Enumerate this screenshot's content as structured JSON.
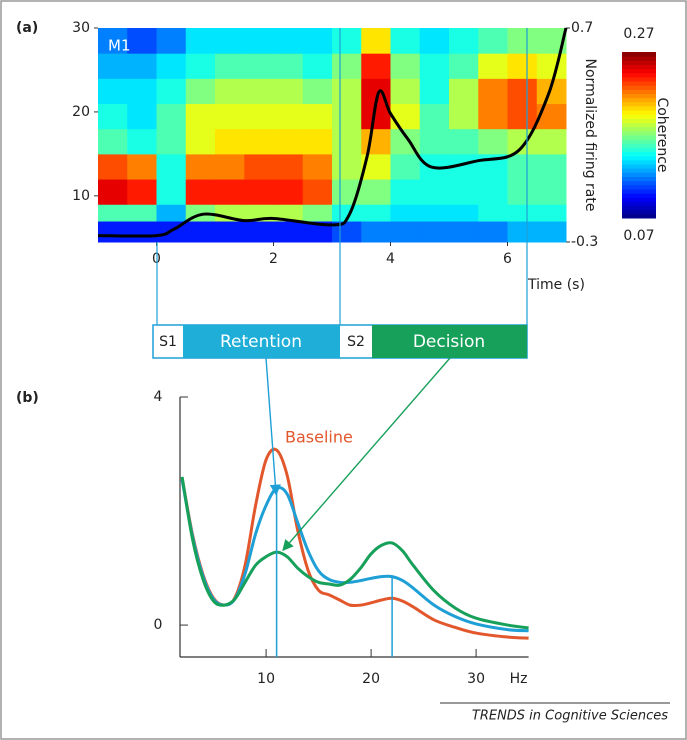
{
  "panels": {
    "a": "(a)",
    "b": "(b)"
  },
  "timeline": {
    "segments": [
      "S1",
      "Retention",
      "S2",
      "Decision"
    ]
  },
  "credit": "TRENDS in Cognitive Sciences",
  "chart_data": [
    {
      "type": "heatmap",
      "label": "M1",
      "x_bins": [
        -1,
        -0.5,
        0,
        0.5,
        1,
        1.5,
        2,
        2.5,
        3,
        3.5,
        4,
        4.5,
        5,
        5.5,
        6,
        6.5,
        7
      ],
      "y_bins": [
        4.5,
        7,
        9,
        12,
        15,
        18,
        21,
        24,
        27,
        30
      ],
      "values": [
        [
          0.1,
          0.1,
          0.1,
          0.1,
          0.1,
          0.1,
          0.1,
          0.1,
          0.11,
          0.12,
          0.12,
          0.12,
          0.12,
          0.12,
          0.13,
          0.13
        ],
        [
          0.16,
          0.16,
          0.13,
          0.17,
          0.18,
          0.18,
          0.18,
          0.17,
          0.15,
          0.15,
          0.14,
          0.14,
          0.14,
          0.15,
          0.15,
          0.15
        ],
        [
          0.25,
          0.24,
          0.15,
          0.24,
          0.24,
          0.24,
          0.24,
          0.23,
          0.17,
          0.17,
          0.15,
          0.15,
          0.15,
          0.15,
          0.16,
          0.16
        ],
        [
          0.23,
          0.22,
          0.15,
          0.22,
          0.22,
          0.23,
          0.23,
          0.22,
          0.18,
          0.19,
          0.16,
          0.15,
          0.15,
          0.15,
          0.16,
          0.16
        ],
        [
          0.16,
          0.15,
          0.16,
          0.19,
          0.2,
          0.2,
          0.2,
          0.2,
          0.18,
          0.21,
          0.17,
          0.16,
          0.16,
          0.17,
          0.18,
          0.18
        ],
        [
          0.15,
          0.14,
          0.16,
          0.19,
          0.19,
          0.19,
          0.19,
          0.19,
          0.18,
          0.25,
          0.19,
          0.16,
          0.18,
          0.22,
          0.23,
          0.22
        ],
        [
          0.14,
          0.14,
          0.15,
          0.17,
          0.18,
          0.18,
          0.18,
          0.17,
          0.18,
          0.25,
          0.18,
          0.15,
          0.18,
          0.22,
          0.23,
          0.21
        ],
        [
          0.13,
          0.13,
          0.14,
          0.15,
          0.16,
          0.16,
          0.16,
          0.15,
          0.17,
          0.24,
          0.17,
          0.15,
          0.16,
          0.19,
          0.2,
          0.19
        ],
        [
          0.12,
          0.11,
          0.12,
          0.14,
          0.14,
          0.14,
          0.14,
          0.14,
          0.15,
          0.2,
          0.15,
          0.14,
          0.15,
          0.16,
          0.17,
          0.17
        ]
      ],
      "xlim": [
        -1,
        7
      ],
      "ylim": [
        4.5,
        30
      ],
      "xticks": [
        0,
        2,
        4,
        6
      ],
      "yticks": [
        10,
        20,
        30
      ],
      "xlabel": "Time (s)",
      "colorbar": {
        "label": "Coherence",
        "clim": [
          0.07,
          0.27
        ],
        "ticks": [
          0.07,
          0.27
        ]
      },
      "y2label": "Normalized firing rate",
      "y2lim": [
        -0.3,
        0.7
      ],
      "y2ticks": [
        -0.3,
        0.7
      ],
      "series": [
        {
          "axis": "y2",
          "color": "#000000",
          "x": [
            -1,
            0,
            0.3,
            0.8,
            1.5,
            2,
            3,
            3.3,
            3.6,
            3.8,
            4.0,
            4.3,
            4.7,
            5.5,
            6.2,
            6.7,
            7
          ],
          "values": [
            -0.27,
            -0.27,
            -0.24,
            -0.17,
            -0.2,
            -0.19,
            -0.22,
            -0.17,
            0.1,
            0.4,
            0.3,
            0.18,
            0.05,
            0.08,
            0.13,
            0.39,
            0.7
          ]
        }
      ]
    },
    {
      "type": "line",
      "x": [
        2,
        3,
        4,
        5,
        6,
        7,
        8,
        9,
        10,
        11,
        12,
        13,
        14,
        15,
        16,
        17,
        18,
        19,
        20,
        21,
        22,
        23,
        24,
        26,
        28,
        30,
        33,
        35
      ],
      "series": [
        {
          "name": "Baseline",
          "color": "#e2572b",
          "values": [
            2.58,
            1.58,
            0.88,
            0.47,
            0.35,
            0.47,
            1.05,
            2.1,
            2.9,
            3.07,
            2.63,
            1.67,
            0.96,
            0.61,
            0.53,
            0.44,
            0.35,
            0.35,
            0.39,
            0.44,
            0.47,
            0.42,
            0.32,
            0.09,
            -0.04,
            -0.14,
            -0.21,
            -0.23
          ]
        },
        {
          "color": "#1e9fd6",
          "values": [
            2.55,
            1.55,
            0.85,
            0.45,
            0.35,
            0.45,
            0.9,
            1.6,
            2.1,
            2.4,
            2.3,
            1.8,
            1.3,
            0.95,
            0.8,
            0.75,
            0.75,
            0.78,
            0.82,
            0.85,
            0.85,
            0.78,
            0.65,
            0.35,
            0.15,
            0.02,
            -0.08,
            -0.1
          ]
        },
        {
          "color": "#17a05a",
          "values": [
            2.6,
            1.5,
            0.8,
            0.42,
            0.35,
            0.45,
            0.75,
            1.05,
            1.2,
            1.28,
            1.2,
            1.0,
            0.85,
            0.75,
            0.72,
            0.7,
            0.8,
            1.0,
            1.25,
            1.4,
            1.44,
            1.3,
            1.05,
            0.6,
            0.3,
            0.12,
            0.0,
            -0.05
          ]
        }
      ],
      "xlim": [
        1.8,
        35
      ],
      "ylim": [
        -0.56,
        4
      ],
      "xticks": [
        10,
        20,
        30
      ],
      "yticks": [
        0,
        4
      ],
      "xlabel": "Hz"
    }
  ]
}
